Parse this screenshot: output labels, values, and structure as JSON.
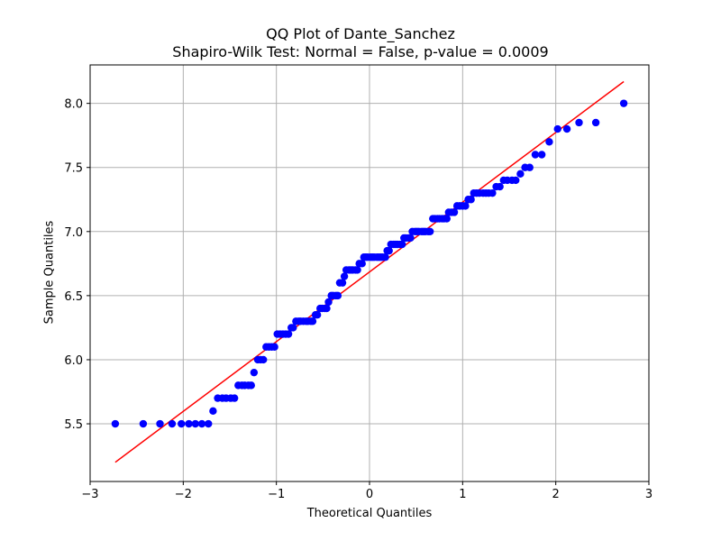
{
  "chart_data": {
    "type": "scatter",
    "title": "QQ Plot of Dante_Sanchez",
    "subtitle": "Shapiro-Wilk Test: Normal = False, p-value = 0.0009",
    "xlabel": "Theoretical Quantiles",
    "ylabel": "Sample Quantiles",
    "xlim": [
      -3,
      3
    ],
    "ylim": [
      5.05,
      8.3
    ],
    "xticks": [
      -3,
      -2,
      -1,
      0,
      1,
      2,
      3
    ],
    "xtick_labels": [
      "−3",
      "−2",
      "−1",
      "0",
      "1",
      "2",
      "3"
    ],
    "yticks": [
      5.5,
      6.0,
      6.5,
      7.0,
      7.5,
      8.0
    ],
    "ytick_labels": [
      "5.5",
      "6.0",
      "6.5",
      "7.0",
      "7.5",
      "8.0"
    ],
    "grid": true,
    "points_color": "#0000ff",
    "line_color": "#ff0000",
    "reference_line": {
      "x": [
        -2.73,
        2.73
      ],
      "y": [
        5.2,
        8.17
      ]
    },
    "points": [
      [
        -2.73,
        5.5
      ],
      [
        -2.43,
        5.5
      ],
      [
        -2.25,
        5.5
      ],
      [
        -2.12,
        5.5
      ],
      [
        -2.02,
        5.5
      ],
      [
        -1.94,
        5.5
      ],
      [
        -1.87,
        5.5
      ],
      [
        -1.8,
        5.5
      ],
      [
        -1.73,
        5.5
      ],
      [
        -1.68,
        5.6
      ],
      [
        -1.63,
        5.7
      ],
      [
        -1.58,
        5.7
      ],
      [
        -1.54,
        5.7
      ],
      [
        -1.49,
        5.7
      ],
      [
        -1.45,
        5.7
      ],
      [
        -1.41,
        5.8
      ],
      [
        -1.37,
        5.8
      ],
      [
        -1.34,
        5.8
      ],
      [
        -1.3,
        5.8
      ],
      [
        -1.27,
        5.8
      ],
      [
        -1.24,
        5.9
      ],
      [
        -1.2,
        6.0
      ],
      [
        -1.17,
        6.0
      ],
      [
        -1.14,
        6.0
      ],
      [
        -1.11,
        6.1
      ],
      [
        -1.08,
        6.1
      ],
      [
        -1.05,
        6.1
      ],
      [
        -1.02,
        6.1
      ],
      [
        -0.99,
        6.2
      ],
      [
        -0.96,
        6.2
      ],
      [
        -0.93,
        6.2
      ],
      [
        -0.9,
        6.2
      ],
      [
        -0.87,
        6.2
      ],
      [
        -0.84,
        6.25
      ],
      [
        -0.82,
        6.25
      ],
      [
        -0.79,
        6.3
      ],
      [
        -0.76,
        6.3
      ],
      [
        -0.74,
        6.3
      ],
      [
        -0.71,
        6.3
      ],
      [
        -0.68,
        6.3
      ],
      [
        -0.66,
        6.3
      ],
      [
        -0.63,
        6.3
      ],
      [
        -0.61,
        6.3
      ],
      [
        -0.58,
        6.35
      ],
      [
        -0.56,
        6.35
      ],
      [
        -0.53,
        6.4
      ],
      [
        -0.51,
        6.4
      ],
      [
        -0.48,
        6.4
      ],
      [
        -0.46,
        6.4
      ],
      [
        -0.44,
        6.45
      ],
      [
        -0.41,
        6.5
      ],
      [
        -0.39,
        6.5
      ],
      [
        -0.36,
        6.5
      ],
      [
        -0.34,
        6.5
      ],
      [
        -0.32,
        6.6
      ],
      [
        -0.29,
        6.6
      ],
      [
        -0.27,
        6.65
      ],
      [
        -0.25,
        6.7
      ],
      [
        -0.22,
        6.7
      ],
      [
        -0.2,
        6.7
      ],
      [
        -0.18,
        6.7
      ],
      [
        -0.15,
        6.7
      ],
      [
        -0.13,
        6.7
      ],
      [
        -0.11,
        6.75
      ],
      [
        -0.08,
        6.75
      ],
      [
        -0.06,
        6.8
      ],
      [
        -0.04,
        6.8
      ],
      [
        -0.02,
        6.8
      ],
      [
        0.01,
        6.8
      ],
      [
        0.03,
        6.8
      ],
      [
        0.05,
        6.8
      ],
      [
        0.08,
        6.8
      ],
      [
        0.1,
        6.8
      ],
      [
        0.12,
        6.8
      ],
      [
        0.14,
        6.8
      ],
      [
        0.17,
        6.8
      ],
      [
        0.19,
        6.85
      ],
      [
        0.21,
        6.85
      ],
      [
        0.23,
        6.9
      ],
      [
        0.26,
        6.9
      ],
      [
        0.28,
        6.9
      ],
      [
        0.3,
        6.9
      ],
      [
        0.33,
        6.9
      ],
      [
        0.35,
        6.9
      ],
      [
        0.37,
        6.95
      ],
      [
        0.39,
        6.95
      ],
      [
        0.42,
        6.95
      ],
      [
        0.44,
        6.95
      ],
      [
        0.46,
        7.0
      ],
      [
        0.49,
        7.0
      ],
      [
        0.51,
        7.0
      ],
      [
        0.53,
        7.0
      ],
      [
        0.56,
        7.0
      ],
      [
        0.58,
        7.0
      ],
      [
        0.6,
        7.0
      ],
      [
        0.63,
        7.0
      ],
      [
        0.65,
        7.0
      ],
      [
        0.68,
        7.1
      ],
      [
        0.7,
        7.1
      ],
      [
        0.73,
        7.1
      ],
      [
        0.75,
        7.1
      ],
      [
        0.78,
        7.1
      ],
      [
        0.8,
        7.1
      ],
      [
        0.83,
        7.1
      ],
      [
        0.85,
        7.15
      ],
      [
        0.88,
        7.15
      ],
      [
        0.91,
        7.15
      ],
      [
        0.94,
        7.2
      ],
      [
        0.97,
        7.2
      ],
      [
        1.0,
        7.2
      ],
      [
        1.03,
        7.2
      ],
      [
        1.06,
        7.25
      ],
      [
        1.09,
        7.25
      ],
      [
        1.12,
        7.3
      ],
      [
        1.15,
        7.3
      ],
      [
        1.18,
        7.3
      ],
      [
        1.22,
        7.3
      ],
      [
        1.25,
        7.3
      ],
      [
        1.28,
        7.3
      ],
      [
        1.32,
        7.3
      ],
      [
        1.36,
        7.35
      ],
      [
        1.4,
        7.35
      ],
      [
        1.44,
        7.4
      ],
      [
        1.48,
        7.4
      ],
      [
        1.53,
        7.4
      ],
      [
        1.57,
        7.4
      ],
      [
        1.62,
        7.45
      ],
      [
        1.67,
        7.5
      ],
      [
        1.72,
        7.5
      ],
      [
        1.78,
        7.6
      ],
      [
        1.85,
        7.6
      ],
      [
        1.93,
        7.7
      ],
      [
        2.02,
        7.8
      ],
      [
        2.12,
        7.8
      ],
      [
        2.25,
        7.85
      ],
      [
        2.43,
        7.85
      ],
      [
        2.73,
        8.0
      ]
    ]
  }
}
